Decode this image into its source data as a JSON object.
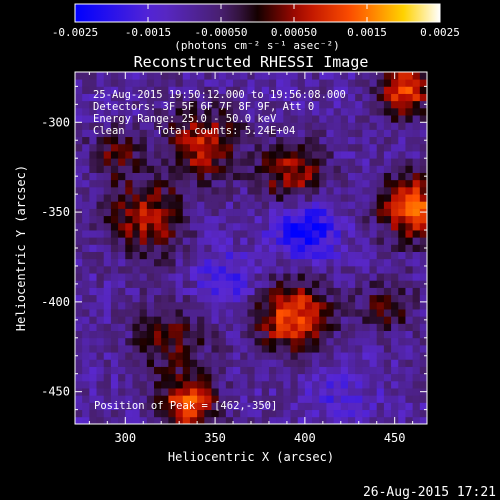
{
  "chart_data": {
    "type": "heatmap",
    "title": "Reconstructed RHESSI Image",
    "xlabel": "Heliocentric X (arcsec)",
    "ylabel": "Heliocentric Y (arcsec)",
    "xlim": [
      272,
      468
    ],
    "ylim": [
      -468,
      -272
    ],
    "xticks": [
      300,
      350,
      400,
      450
    ],
    "yticks": [
      -300,
      -350,
      -400,
      -450
    ],
    "colorbar": {
      "min": -0.0025,
      "max": 0.0025,
      "ticks": [
        "-0.0025",
        "-0.0015",
        "-0.00050",
        "0.00050",
        "0.0015",
        "0.0025"
      ],
      "tick_values": [
        -0.0025,
        -0.0015,
        -0.0005,
        0.0005,
        0.0015,
        0.0025
      ],
      "label": "(photons cm⁻² s⁻¹ asec⁻²)"
    },
    "annotations": [
      "25-Aug-2015 19:50:12.000 to 19:56:08.000",
      "Detectors: 3F 5F 6F 7F 8F 9F, Att 0",
      "Energy Range: 25.0 - 50.0 keV",
      "Clean     Total counts: 5.24E+04"
    ],
    "peak_label": "Position of Peak = [462,-350]",
    "peak_position": [
      462,
      -350
    ],
    "grid": false,
    "sources": [
      {
        "x": 459,
        "y": -347,
        "amp": 0.0023,
        "sigma": 12
      },
      {
        "x": 393,
        "y": -328,
        "amp": 0.0016,
        "sigma": 12
      },
      {
        "x": 393,
        "y": -408,
        "amp": 0.0021,
        "sigma": 14
      },
      {
        "x": 343,
        "y": -312,
        "amp": 0.0016,
        "sigma": 14
      },
      {
        "x": 312,
        "y": -353,
        "amp": 0.0016,
        "sigma": 14
      },
      {
        "x": 335,
        "y": -458,
        "amp": 0.0021,
        "sigma": 11
      },
      {
        "x": 455,
        "y": -282,
        "amp": 0.0021,
        "sigma": 10
      },
      {
        "x": 445,
        "y": -403,
        "amp": 0.0009,
        "sigma": 11
      },
      {
        "x": 325,
        "y": -420,
        "amp": 0.0011,
        "sigma": 14
      },
      {
        "x": 295,
        "y": -318,
        "amp": 0.001,
        "sigma": 10
      },
      {
        "x": 400,
        "y": -360,
        "amp": -0.0016,
        "sigma": 12
      },
      {
        "x": 357,
        "y": -388,
        "amp": -0.0008,
        "sigma": 12
      },
      {
        "x": 420,
        "y": -448,
        "amp": -0.0006,
        "sigma": 14
      }
    ]
  },
  "footer": {
    "timestamp": "26-Aug-2015 17:21"
  }
}
